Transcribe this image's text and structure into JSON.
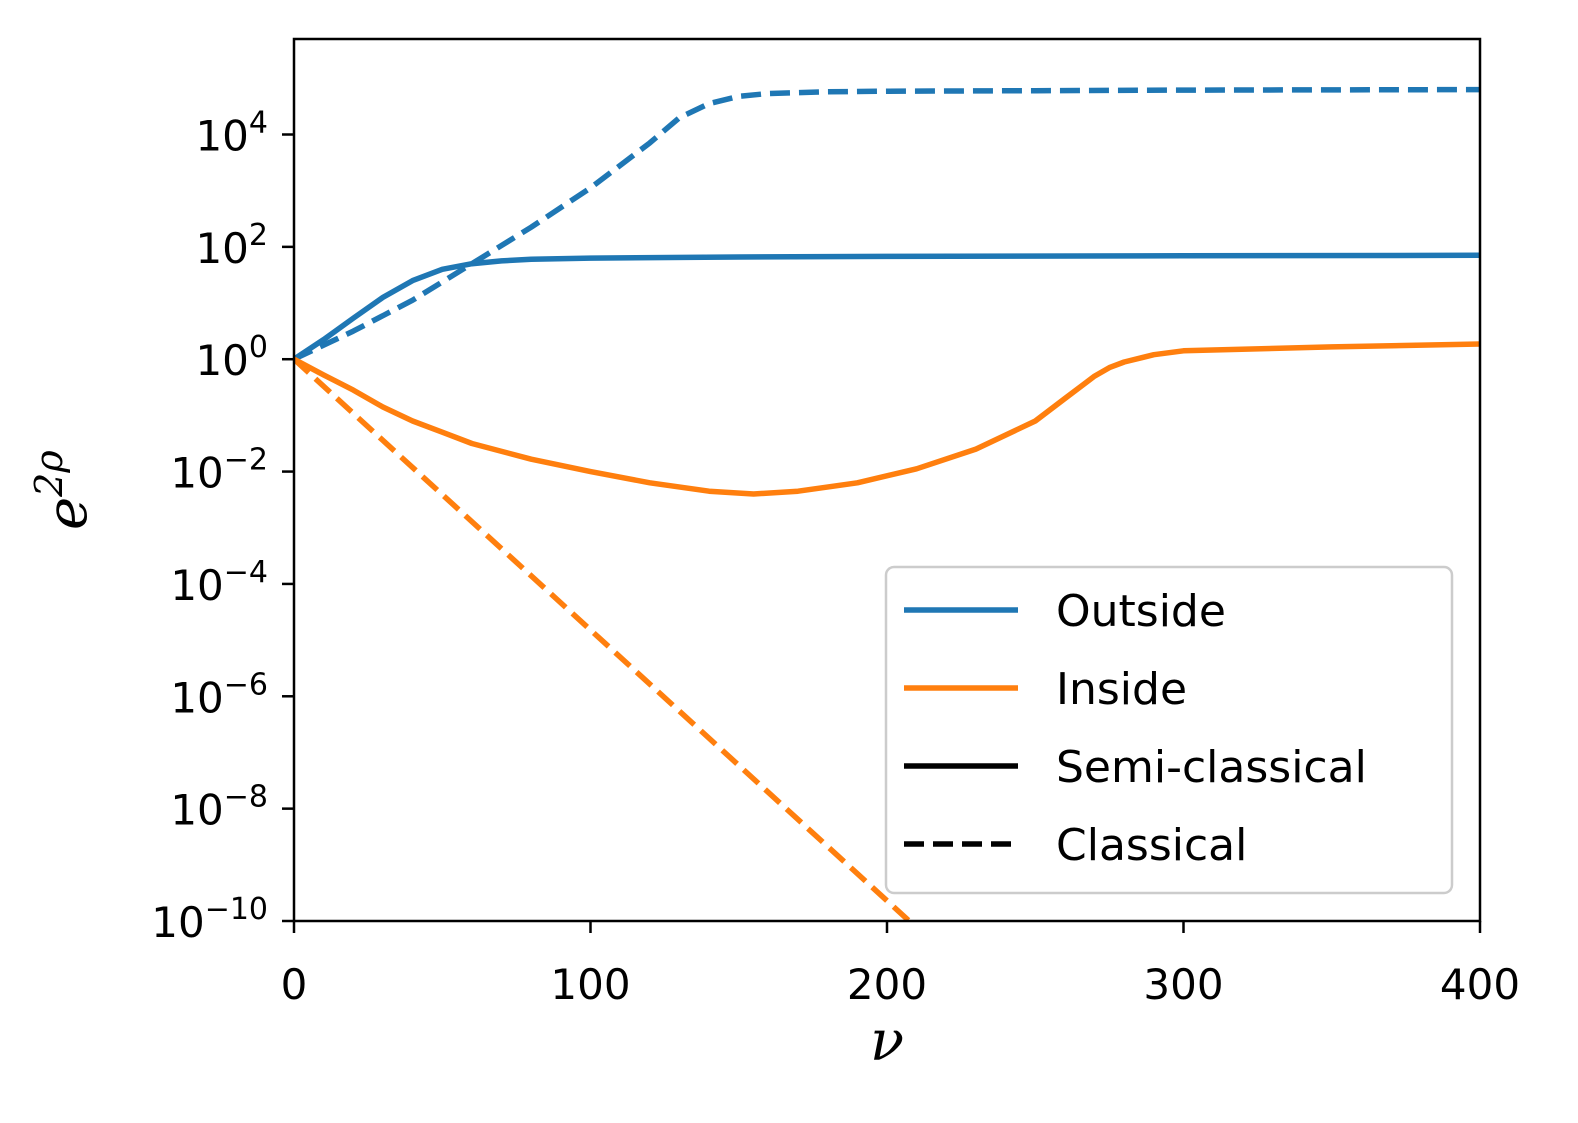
{
  "chart_data": {
    "type": "line",
    "title": "",
    "xlabel": "ν",
    "ylabel_base": "e",
    "ylabel_exp": "2ρ",
    "xlim": [
      0,
      400
    ],
    "ylim_log10": [
      -10,
      5.7
    ],
    "yscale": "log",
    "grid": false,
    "legend_placement": "lower-right",
    "x_ticks": [
      "0",
      "100",
      "200",
      "300",
      "400"
    ],
    "x_tick_values": [
      0,
      100,
      200,
      300,
      400
    ],
    "y_tick_exponents": [
      4,
      2,
      0,
      -2,
      -4,
      -6,
      -8,
      -10
    ],
    "y_tick_base": "10",
    "y_tick_labels": [
      "4",
      "2",
      "0",
      "−2",
      "−4",
      "−6",
      "−8",
      "−10"
    ],
    "colors": {
      "outside": "#1f77b4",
      "inside": "#ff7f0e",
      "style_key": "#000000"
    },
    "series": [
      {
        "name": "Outside, Semi-classical",
        "color": "outside",
        "dash": "solid",
        "x": [
          0,
          10,
          20,
          30,
          40,
          50,
          60,
          70,
          80,
          100,
          150,
          200,
          300,
          400
        ],
        "y_log10": [
          0,
          0.35,
          0.73,
          1.1,
          1.4,
          1.6,
          1.7,
          1.75,
          1.78,
          1.8,
          1.82,
          1.83,
          1.84,
          1.85
        ]
      },
      {
        "name": "Outside, Classical",
        "color": "outside",
        "dash": "dashed",
        "x": [
          0,
          20,
          40,
          60,
          80,
          100,
          120,
          130,
          140,
          150,
          160,
          180,
          200,
          250,
          300,
          400
        ],
        "y_log10": [
          0,
          0.5,
          1.05,
          1.7,
          2.35,
          3.05,
          3.85,
          4.3,
          4.55,
          4.68,
          4.73,
          4.76,
          4.77,
          4.78,
          4.79,
          4.8
        ]
      },
      {
        "name": "Inside, Semi-classical",
        "color": "inside",
        "dash": "solid",
        "x": [
          0,
          10,
          20,
          30,
          40,
          50,
          60,
          80,
          100,
          120,
          140,
          155,
          170,
          190,
          210,
          230,
          250,
          260,
          270,
          275,
          280,
          290,
          300,
          350,
          400
        ],
        "y_log10": [
          0,
          -0.28,
          -0.55,
          -0.85,
          -1.1,
          -1.3,
          -1.5,
          -1.78,
          -2.0,
          -2.2,
          -2.35,
          -2.4,
          -2.35,
          -2.2,
          -1.95,
          -1.6,
          -1.1,
          -0.7,
          -0.3,
          -0.15,
          -0.05,
          0.08,
          0.15,
          0.22,
          0.27
        ]
      },
      {
        "name": "Inside, Classical",
        "color": "inside",
        "dash": "dashed",
        "x": [
          0,
          207.5
        ],
        "y_log10": [
          0,
          -10
        ]
      }
    ],
    "legend": [
      {
        "label": "Outside",
        "swatch": "outside",
        "dash": "solid"
      },
      {
        "label": "Inside",
        "swatch": "inside",
        "dash": "solid"
      },
      {
        "label": "Semi-classical",
        "swatch": "style_key",
        "dash": "solid"
      },
      {
        "label": "Classical",
        "swatch": "style_key",
        "dash": "dashed"
      }
    ]
  }
}
